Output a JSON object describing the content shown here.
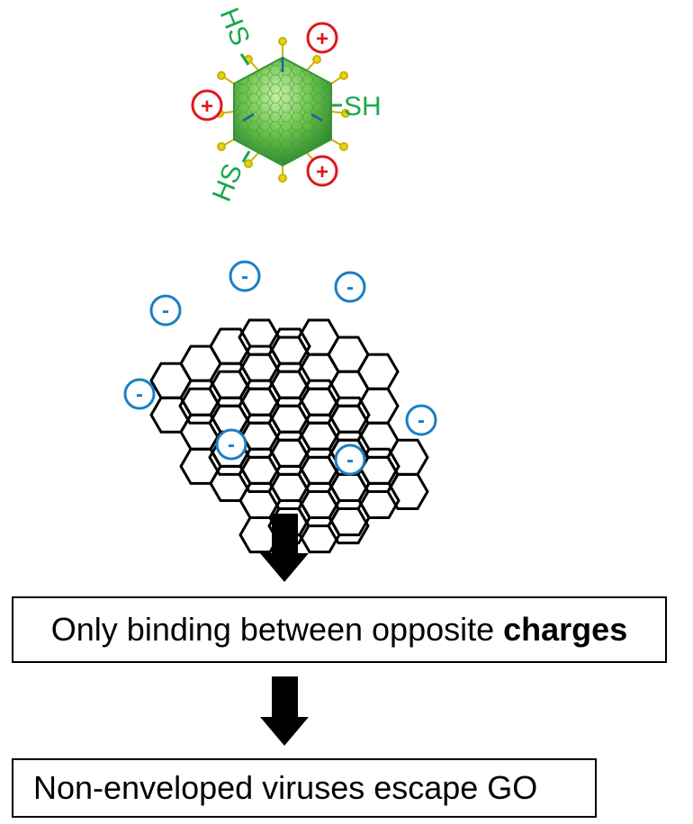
{
  "virus": {
    "thiol_labels": [
      "SH",
      "HS",
      "HS"
    ],
    "positive_sign": "+",
    "positive_color": "#e0161c",
    "thiol_color": "#1aa84a",
    "capsid_color": "#6cc24a"
  },
  "graphene_oxide": {
    "negative_sign": "-",
    "negative_color": "#1b7fc4",
    "lattice_color": "#000000"
  },
  "step1": {
    "text_before": "Only binding between opposite ",
    "text_bold": "charges"
  },
  "step2": {
    "text": "Non-enveloped viruses escape GO"
  },
  "icons": [
    "down-arrow-icon",
    "down-arrow-icon"
  ]
}
